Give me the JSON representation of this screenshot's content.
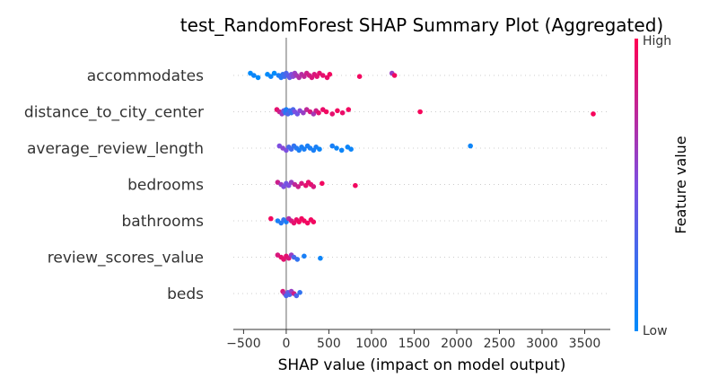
{
  "chart_data": {
    "type": "scatter",
    "title": "test_RandomForest SHAP Summary Plot (Aggregated)",
    "xlabel": "SHAP value (impact on model output)",
    "xlim": [
      -620,
      3800
    ],
    "xticks": [
      -500,
      0,
      500,
      1000,
      1500,
      2000,
      2500,
      3000,
      3500
    ],
    "xtick_labels": [
      "−500",
      "0",
      "500",
      "1000",
      "1500",
      "2000",
      "2500",
      "3000",
      "3500"
    ],
    "colorbar": {
      "label": "Feature value",
      "high_label": "High",
      "low_label": "Low",
      "high_color": "#ff0052",
      "low_color": "#008bfb"
    },
    "features": [
      {
        "name": "accommodates",
        "points": [
          [
            -420,
            0.0
          ],
          [
            -380,
            0.05
          ],
          [
            -330,
            0.0
          ],
          [
            -220,
            0.0
          ],
          [
            -180,
            0.05
          ],
          [
            -140,
            0.0
          ],
          [
            -90,
            0.1
          ],
          [
            -60,
            0.15
          ],
          [
            -40,
            0.2
          ],
          [
            -20,
            0.25
          ],
          [
            0,
            0.3
          ],
          [
            20,
            0.35
          ],
          [
            40,
            0.4
          ],
          [
            60,
            0.5
          ],
          [
            80,
            0.55
          ],
          [
            100,
            0.6
          ],
          [
            120,
            0.65
          ],
          [
            150,
            0.7
          ],
          [
            180,
            0.72
          ],
          [
            210,
            0.75
          ],
          [
            240,
            0.8
          ],
          [
            270,
            0.82
          ],
          [
            300,
            0.85
          ],
          [
            330,
            0.85
          ],
          [
            360,
            0.88
          ],
          [
            390,
            0.9
          ],
          [
            430,
            0.9
          ],
          [
            480,
            0.92
          ],
          [
            510,
            0.95
          ],
          [
            860,
            0.95
          ],
          [
            1240,
            0.6
          ],
          [
            1270,
            0.95
          ]
        ]
      },
      {
        "name": "distance_to_city_center",
        "points": [
          [
            -110,
            0.9
          ],
          [
            -80,
            0.8
          ],
          [
            -50,
            0.6
          ],
          [
            -30,
            0.4
          ],
          [
            -10,
            0.2
          ],
          [
            0,
            0.1
          ],
          [
            10,
            0.15
          ],
          [
            20,
            0.3
          ],
          [
            40,
            0.25
          ],
          [
            60,
            0.2
          ],
          [
            80,
            0.3
          ],
          [
            100,
            0.5
          ],
          [
            130,
            0.45
          ],
          [
            160,
            0.55
          ],
          [
            200,
            0.6
          ],
          [
            240,
            0.75
          ],
          [
            280,
            0.85
          ],
          [
            320,
            0.65
          ],
          [
            350,
            0.8
          ],
          [
            380,
            0.9
          ],
          [
            430,
            0.92
          ],
          [
            470,
            0.95
          ],
          [
            540,
            0.9
          ],
          [
            600,
            0.95
          ],
          [
            660,
            0.92
          ],
          [
            730,
            0.95
          ],
          [
            1570,
            0.97
          ],
          [
            3600,
            0.97
          ]
        ]
      },
      {
        "name": "average_review_length",
        "points": [
          [
            -80,
            0.5
          ],
          [
            -40,
            0.55
          ],
          [
            0,
            0.5
          ],
          [
            30,
            0.3
          ],
          [
            60,
            0.25
          ],
          [
            90,
            0.2
          ],
          [
            120,
            0.15
          ],
          [
            150,
            0.1
          ],
          [
            180,
            0.1
          ],
          [
            210,
            0.1
          ],
          [
            250,
            0.1
          ],
          [
            280,
            0.1
          ],
          [
            320,
            0.1
          ],
          [
            350,
            0.1
          ],
          [
            390,
            0.05
          ],
          [
            540,
            0.1
          ],
          [
            590,
            0.05
          ],
          [
            650,
            0.05
          ],
          [
            720,
            0.05
          ],
          [
            760,
            0.05
          ],
          [
            2160,
            0.05
          ]
        ]
      },
      {
        "name": "bedrooms",
        "points": [
          [
            -100,
            0.8
          ],
          [
            -60,
            0.6
          ],
          [
            -30,
            0.5
          ],
          [
            0,
            0.45
          ],
          [
            30,
            0.5
          ],
          [
            60,
            0.6
          ],
          [
            100,
            0.75
          ],
          [
            140,
            0.8
          ],
          [
            180,
            0.85
          ],
          [
            230,
            0.9
          ],
          [
            260,
            0.9
          ],
          [
            290,
            0.9
          ],
          [
            320,
            0.85
          ],
          [
            420,
            0.95
          ],
          [
            810,
            0.95
          ]
        ]
      },
      {
        "name": "bathrooms",
        "points": [
          [
            -180,
            0.95
          ],
          [
            -100,
            0.1
          ],
          [
            -60,
            0.15
          ],
          [
            -30,
            0.2
          ],
          [
            0,
            0.1
          ],
          [
            30,
            0.7
          ],
          [
            60,
            0.85
          ],
          [
            90,
            0.9
          ],
          [
            120,
            0.92
          ],
          [
            150,
            0.95
          ],
          [
            180,
            0.95
          ],
          [
            210,
            0.95
          ],
          [
            250,
            0.95
          ],
          [
            290,
            0.95
          ],
          [
            320,
            0.95
          ]
        ]
      },
      {
        "name": "review_scores_value",
        "points": [
          [
            -100,
            0.85
          ],
          [
            -60,
            0.9
          ],
          [
            -30,
            0.9
          ],
          [
            0,
            0.9
          ],
          [
            30,
            0.85
          ],
          [
            60,
            0.6
          ],
          [
            90,
            0.3
          ],
          [
            130,
            0.2
          ],
          [
            210,
            0.1
          ],
          [
            400,
            0.05
          ]
        ]
      },
      {
        "name": "beds",
        "points": [
          [
            -40,
            0.85
          ],
          [
            -20,
            0.7
          ],
          [
            0,
            0.3
          ],
          [
            20,
            0.4
          ],
          [
            40,
            0.3
          ],
          [
            60,
            0.6
          ],
          [
            90,
            0.8
          ],
          [
            120,
            0.3
          ],
          [
            160,
            0.2
          ]
        ]
      }
    ]
  }
}
